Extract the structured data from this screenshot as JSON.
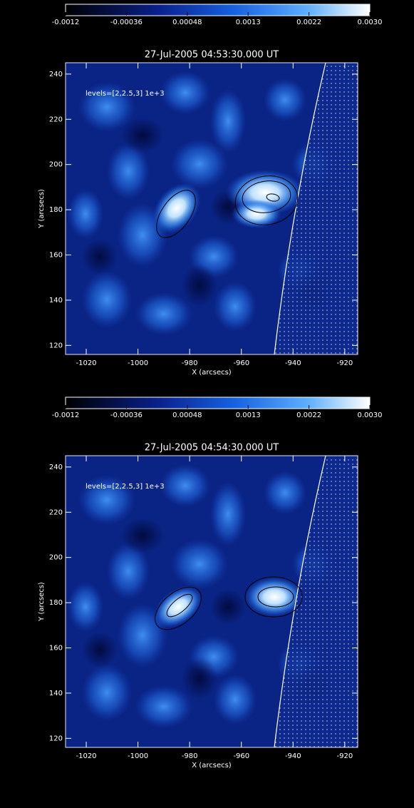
{
  "chart_data": [
    {
      "type": "heatmap",
      "title": "27-Jul-2005 04:53:30.000 UT",
      "annotation": "levels=[2,2.5,3] 1e+3",
      "xlabel": "X (arcsecs)",
      "ylabel": "Y (arcsecs)",
      "xlim": [
        -1028,
        -915
      ],
      "ylim": [
        116,
        245
      ],
      "xticks": [
        -1020,
        -1000,
        -980,
        -960,
        -940,
        -920
      ],
      "yticks": [
        120,
        140,
        160,
        180,
        200,
        220,
        240
      ],
      "colorbar_lim": [
        -0.0012,
        0.003
      ],
      "colorbar_ticks": [
        -0.0012,
        -0.00036,
        0.00048,
        {
          "value": 0.00132,
          "label": "0.0013"
        },
        {
          "value": 0.00216,
          "label": "0.0022"
        },
        {
          "value": 0.003,
          "label": "0.0030"
        }
      ]
    },
    {
      "type": "heatmap",
      "title": "27-Jul-2005 04:54:30.000 UT",
      "annotation": "levels=[2,2.5,3] 1e+3",
      "xlabel": "X (arcsecs)",
      "ylabel": "Y (arcsecs)",
      "xlim": [
        -1028,
        -915
      ],
      "ylim": [
        116,
        245
      ],
      "xticks": [
        -1020,
        -1000,
        -980,
        -960,
        -940,
        -920
      ],
      "yticks": [
        120,
        140,
        160,
        180,
        200,
        220,
        240
      ],
      "colorbar_lim": [
        -0.0012,
        0.003
      ],
      "colorbar_ticks": [
        -0.0012,
        -0.00036,
        0.00048,
        {
          "value": 0.00132,
          "label": "0.0013"
        },
        {
          "value": 0.00216,
          "label": "0.0022"
        },
        {
          "value": 0.003,
          "label": "0.0030"
        }
      ]
    }
  ]
}
